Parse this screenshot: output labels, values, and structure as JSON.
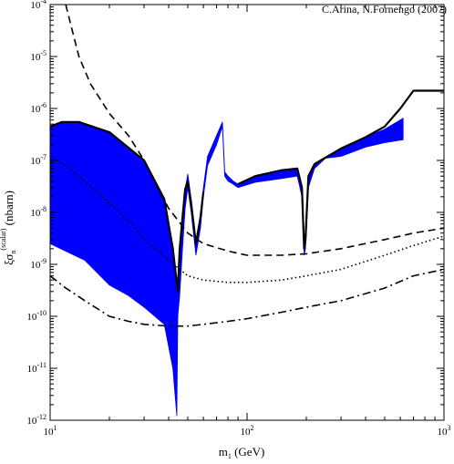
{
  "chart_data": {
    "type": "line",
    "credit": "C.Arina, N.Fornengo (2007)",
    "xlabel": {
      "main": "m",
      "sub": "1",
      "unit": " (GeV)"
    },
    "ylabel": {
      "main": "ξσ",
      "sub": "n",
      "sup": "(scalar)",
      "unit": " (nbarn)"
    },
    "x_scale": "log",
    "y_scale": "log",
    "xlim": [
      10,
      1000
    ],
    "ylim": [
      1e-12,
      0.0001
    ],
    "grid": false,
    "x_ticks": [
      {
        "value": 10,
        "base": "10",
        "exp": "1"
      },
      {
        "value": 100,
        "base": "10",
        "exp": "2"
      },
      {
        "value": 1000,
        "base": "10",
        "exp": "3"
      }
    ],
    "y_ticks": [
      {
        "value": 1e-12,
        "base": "10",
        "exp": "-12"
      },
      {
        "value": 1e-11,
        "base": "10",
        "exp": "-11"
      },
      {
        "value": 1e-10,
        "base": "10",
        "exp": "-10"
      },
      {
        "value": 1e-09,
        "base": "10",
        "exp": "-9"
      },
      {
        "value": 1e-08,
        "base": "10",
        "exp": "-8"
      },
      {
        "value": 1e-07,
        "base": "10",
        "exp": "-7"
      },
      {
        "value": 1e-06,
        "base": "10",
        "exp": "-6"
      },
      {
        "value": 1e-05,
        "base": "10",
        "exp": "-5"
      },
      {
        "value": 0.0001,
        "base": "10",
        "exp": "-4"
      }
    ],
    "series": [
      {
        "id": "allowed-region",
        "kind": "band",
        "color": "#0000ff",
        "upper": [
          [
            10,
            4.5e-07
          ],
          [
            11.5,
            5.5e-07
          ],
          [
            14,
            5.5e-07
          ],
          [
            20,
            3.5e-07
          ],
          [
            30,
            1e-07
          ],
          [
            38,
            1.8e-08
          ],
          [
            42,
            2e-09
          ],
          [
            44.5,
            3e-10
          ],
          [
            45.5,
            2e-09
          ],
          [
            47,
            8e-09
          ],
          [
            48.5,
            2.8e-08
          ],
          [
            50,
            5.5e-08
          ],
          [
            52,
            1.8e-08
          ],
          [
            55,
            2.5e-09
          ],
          [
            58,
            8e-09
          ],
          [
            60,
            3e-08
          ],
          [
            63,
            1.2e-07
          ],
          [
            70,
            3e-07
          ],
          [
            75,
            5.5e-07
          ],
          [
            77,
            6e-08
          ],
          [
            80,
            5e-08
          ],
          [
            85,
            4e-08
          ],
          [
            90,
            3.5e-08
          ],
          [
            110,
            5e-08
          ],
          [
            150,
            6.5e-08
          ],
          [
            180,
            7e-08
          ],
          [
            190,
            3e-08
          ],
          [
            195,
            2e-09
          ],
          [
            198,
            3e-09
          ],
          [
            205,
            5e-08
          ],
          [
            220,
            8.5e-08
          ],
          [
            300,
            1.7e-07
          ],
          [
            400,
            2.8e-07
          ],
          [
            500,
            4e-07
          ],
          [
            600,
            6e-07
          ],
          [
            620,
            6.5e-07
          ]
        ],
        "lower": [
          [
            620,
            2.5e-07
          ],
          [
            500,
            2.2e-07
          ],
          [
            400,
            1.8e-07
          ],
          [
            300,
            1.2e-07
          ],
          [
            250,
            1.1e-07
          ],
          [
            220,
            7e-08
          ],
          [
            205,
            3e-08
          ],
          [
            198,
            2e-09
          ],
          [
            195,
            1.5e-09
          ],
          [
            190,
            2e-08
          ],
          [
            180,
            5e-08
          ],
          [
            150,
            4.5e-08
          ],
          [
            110,
            3.8e-08
          ],
          [
            90,
            3e-08
          ],
          [
            85,
            3.5e-08
          ],
          [
            80,
            4e-08
          ],
          [
            77,
            5e-08
          ],
          [
            75,
            4.5e-07
          ],
          [
            70,
            2e-07
          ],
          [
            63,
            8e-08
          ],
          [
            60,
            2e-08
          ],
          [
            58,
            5e-09
          ],
          [
            55,
            1.5e-09
          ],
          [
            52,
            1e-08
          ],
          [
            50,
            3e-08
          ],
          [
            48.5,
            1.2e-08
          ],
          [
            47,
            2e-09
          ],
          [
            45.5,
            2.5e-10
          ],
          [
            44.5,
            1e-10
          ],
          [
            44,
            1.2e-12
          ],
          [
            42,
            1e-11
          ],
          [
            38,
            7e-11
          ],
          [
            30,
            1.5e-10
          ],
          [
            25,
            2.5e-10
          ],
          [
            20,
            4e-10
          ],
          [
            15,
            1.2e-09
          ],
          [
            10,
            2.5e-09
          ]
        ]
      },
      {
        "id": "upper-envelope",
        "kind": "line",
        "color": "#000000",
        "dash": "solid",
        "points": [
          [
            10,
            4.5e-07
          ],
          [
            11.5,
            5.5e-07
          ],
          [
            14,
            5.5e-07
          ],
          [
            20,
            3.5e-07
          ],
          [
            30,
            1e-07
          ],
          [
            38,
            1.8e-08
          ],
          [
            42,
            2e-09
          ],
          [
            44.5,
            3e-10
          ],
          [
            45.5,
            2e-09
          ],
          [
            47,
            8e-09
          ],
          [
            48.5,
            2.8e-08
          ],
          [
            50,
            4e-08
          ],
          [
            52,
            1.5e-08
          ],
          [
            55,
            2.5e-09
          ],
          [
            58,
            8e-09
          ],
          [
            60,
            2.5e-08
          ]
        ]
      },
      {
        "id": "upper-envelope-2",
        "kind": "line",
        "color": "#000000",
        "dash": "solid",
        "points": [
          [
            90,
            3.5e-08
          ],
          [
            110,
            5e-08
          ],
          [
            150,
            6.5e-08
          ],
          [
            180,
            7e-08
          ],
          [
            190,
            3e-08
          ],
          [
            195,
            2e-09
          ],
          [
            198,
            3e-09
          ],
          [
            205,
            5e-08
          ],
          [
            220,
            8.5e-08
          ],
          [
            300,
            1.7e-07
          ],
          [
            400,
            2.8e-07
          ],
          [
            500,
            4.5e-07
          ],
          [
            600,
            1e-06
          ],
          [
            700,
            2.2e-06
          ],
          [
            1000,
            2.2e-06
          ]
        ]
      },
      {
        "id": "dashed-curve",
        "kind": "line",
        "color": "#000000",
        "dash": "dashed",
        "points": [
          [
            12,
            0.0001
          ],
          [
            13,
            3e-05
          ],
          [
            14,
            1e-05
          ],
          [
            16,
            3e-06
          ],
          [
            18,
            1.5e-06
          ],
          [
            20,
            8e-07
          ],
          [
            25,
            3e-07
          ],
          [
            30,
            1e-07
          ],
          [
            35,
            3e-08
          ],
          [
            40,
            1.2e-08
          ],
          [
            50,
            4e-09
          ],
          [
            60,
            2.5e-09
          ],
          [
            80,
            1.8e-09
          ],
          [
            100,
            1.5e-09
          ],
          [
            150,
            1.5e-09
          ],
          [
            200,
            1.6e-09
          ],
          [
            300,
            2e-09
          ],
          [
            500,
            3e-09
          ],
          [
            700,
            4e-09
          ],
          [
            1000,
            5e-09
          ]
        ]
      },
      {
        "id": "dotted-curve",
        "kind": "line",
        "color": "#000000",
        "dash": "dotted",
        "points": [
          [
            10,
            1.2e-07
          ],
          [
            12,
            8e-08
          ],
          [
            15,
            4e-08
          ],
          [
            20,
            1.5e-08
          ],
          [
            25,
            7e-09
          ],
          [
            30,
            3e-09
          ],
          [
            40,
            1.2e-09
          ],
          [
            50,
            6e-10
          ],
          [
            60,
            5e-10
          ],
          [
            80,
            4.5e-10
          ],
          [
            100,
            4.5e-10
          ],
          [
            150,
            5e-10
          ],
          [
            200,
            6e-10
          ],
          [
            300,
            8e-10
          ],
          [
            500,
            1.5e-09
          ],
          [
            700,
            2.3e-09
          ],
          [
            1000,
            3.5e-09
          ]
        ]
      },
      {
        "id": "dash-dot-curve",
        "kind": "line",
        "color": "#000000",
        "dash": "dashdot",
        "points": [
          [
            10,
            6e-10
          ],
          [
            12,
            3.5e-10
          ],
          [
            15,
            2e-10
          ],
          [
            20,
            1e-10
          ],
          [
            25,
            8e-11
          ],
          [
            30,
            7e-11
          ],
          [
            40,
            6.5e-11
          ],
          [
            50,
            6.5e-11
          ],
          [
            60,
            7e-11
          ],
          [
            80,
            8e-11
          ],
          [
            100,
            9e-11
          ],
          [
            150,
            1.2e-10
          ],
          [
            200,
            1.5e-10
          ],
          [
            300,
            2e-10
          ],
          [
            500,
            3.5e-10
          ],
          [
            700,
            6e-10
          ],
          [
            1000,
            8e-10
          ]
        ]
      }
    ]
  }
}
